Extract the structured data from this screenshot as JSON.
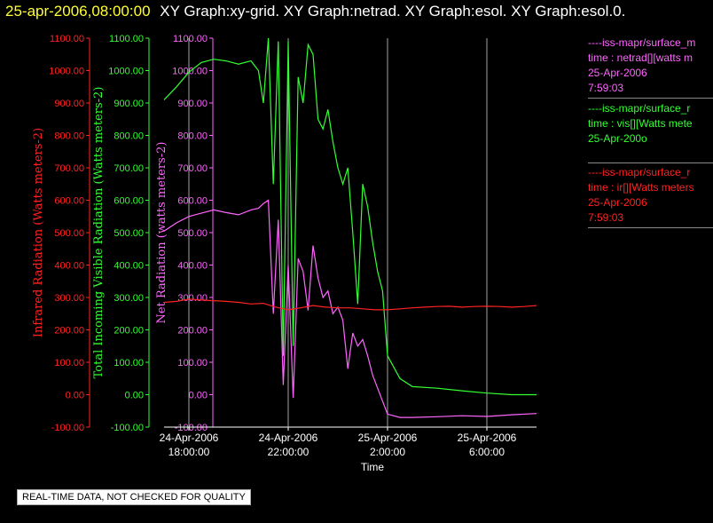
{
  "header": {
    "timestamp": "25-apr-2006,08:00:00",
    "graph_names": "XY Graph:xy-grid.  XY Graph:netrad.  XY Graph:esol.  XY Graph:esol.0."
  },
  "legend": [
    {
      "color": "#ff66ff",
      "lines": [
        "----iss-mapr/surface_m",
        "time : netrad[][watts m",
        "25-Apr-2006",
        "7:59:03"
      ]
    },
    {
      "color": "#33ff33",
      "lines": [
        "----iss-mapr/surface_r",
        "time : vis[][Watts mete",
        "25-Apr-200o"
      ]
    },
    {
      "color": "#ff2222",
      "lines": [
        "----iss-mapr/surface_r",
        "time : ir[][Watts meters",
        "25-Apr-2006",
        "7:59:03"
      ]
    }
  ],
  "qc_note": "REAL-TIME DATA, NOT CHECKED FOR QUALITY",
  "chart_data": {
    "type": "line",
    "xlabel": "Time",
    "x_ticks": [
      {
        "hours": 1.0,
        "line1": "24-Apr-2006",
        "line2": "18:00:00"
      },
      {
        "hours": 5.0,
        "line1": "24-Apr-2006",
        "line2": "22:00:00"
      },
      {
        "hours": 9.0,
        "line1": "25-Apr-2006",
        "line2": "2:00:00"
      },
      {
        "hours": 13.0,
        "line1": "25-Apr-2006",
        "line2": "6:00:00"
      }
    ],
    "xlim_hours": [
      0,
      15.0
    ],
    "axes": [
      {
        "id": "ir",
        "label": "Infrared Radiation (Watts meters-2)",
        "color": "#ff2222",
        "ylim": [
          -100,
          1100
        ],
        "ticks": [
          "1100.00",
          "1000.00",
          "900.00",
          "800.00",
          "700.00",
          "600.00",
          "500.00",
          "400.00",
          "300.00",
          "200.00",
          "100.00",
          "0.00",
          "-100.00"
        ]
      },
      {
        "id": "vis",
        "label": "Total Incoming Visible Radiation (Watts meters-2)",
        "color": "#33ff33",
        "ylim": [
          -100,
          1100
        ],
        "ticks": [
          "1100.00",
          "1000.00",
          "900.00",
          "800.00",
          "700.00",
          "600.00",
          "500.00",
          "400.00",
          "300.00",
          "200.00",
          "100.00",
          "0.00",
          "-100.00"
        ]
      },
      {
        "id": "net",
        "label": "Net Radiation (watts meters-2)",
        "color": "#ff66ff",
        "ylim": [
          -100,
          1100
        ],
        "ticks": [
          "1100.00",
          "1000.00",
          "900.00",
          "800.00",
          "700.00",
          "600.00",
          "500.00",
          "400.00",
          "300.00",
          "200.00",
          "100.00",
          "0.00",
          "-100.00"
        ]
      }
    ],
    "grid": "vertical lines at x ticks",
    "series": [
      {
        "axis": "vis",
        "color": "#33ff33",
        "x": [
          0.0,
          0.5,
          1.0,
          1.5,
          2.0,
          2.5,
          3.0,
          3.5,
          3.8,
          4.0,
          4.2,
          4.4,
          4.6,
          4.8,
          5.0,
          5.2,
          5.4,
          5.6,
          5.8,
          6.0,
          6.2,
          6.4,
          6.6,
          6.8,
          7.0,
          7.2,
          7.4,
          7.6,
          7.8,
          8.0,
          8.2,
          8.4,
          8.6,
          8.8,
          9.0,
          9.5,
          10,
          11,
          12,
          13,
          14,
          15
        ],
        "values": [
          910,
          950,
          995,
          1025,
          1035,
          1030,
          1020,
          1030,
          1000,
          900,
          1100,
          650,
          1090,
          120,
          1090,
          150,
          980,
          900,
          1080,
          1050,
          850,
          820,
          880,
          780,
          700,
          650,
          700,
          500,
          280,
          650,
          580,
          470,
          380,
          320,
          120,
          50,
          25,
          20,
          12,
          5,
          0,
          0
        ]
      },
      {
        "axis": "net",
        "color": "#ff66ff",
        "x": [
          0.0,
          0.5,
          1.0,
          1.5,
          2.0,
          2.5,
          3.0,
          3.5,
          3.8,
          4.0,
          4.2,
          4.4,
          4.6,
          4.8,
          5.0,
          5.2,
          5.4,
          5.6,
          5.8,
          6.0,
          6.2,
          6.4,
          6.6,
          6.8,
          7.0,
          7.2,
          7.4,
          7.6,
          7.8,
          8.0,
          8.2,
          8.4,
          8.6,
          8.8,
          9.0,
          9.5,
          10,
          11,
          12,
          13,
          14,
          15
        ],
        "values": [
          505,
          530,
          550,
          560,
          570,
          562,
          555,
          570,
          575,
          590,
          600,
          250,
          540,
          30,
          400,
          -10,
          420,
          380,
          260,
          460,
          360,
          300,
          320,
          250,
          270,
          230,
          80,
          190,
          150,
          170,
          120,
          60,
          20,
          -20,
          -60,
          -70,
          -70,
          -68,
          -65,
          -67,
          -62,
          -58
        ]
      },
      {
        "axis": "ir",
        "color": "#ff2222",
        "x": [
          0.0,
          0.5,
          1.0,
          1.5,
          2.0,
          2.5,
          3.0,
          3.5,
          4.0,
          4.5,
          5.0,
          5.5,
          6.0,
          6.5,
          7.0,
          7.5,
          8.0,
          8.5,
          9.0,
          9.5,
          10,
          10.5,
          11,
          11.5,
          12,
          12.5,
          13,
          13.5,
          14,
          14.5,
          15
        ],
        "values": [
          285,
          288,
          295,
          292,
          290,
          288,
          285,
          280,
          282,
          270,
          262,
          268,
          275,
          270,
          268,
          268,
          265,
          262,
          262,
          265,
          268,
          270,
          272,
          273,
          270,
          272,
          273,
          272,
          270,
          272,
          275
        ]
      }
    ]
  }
}
